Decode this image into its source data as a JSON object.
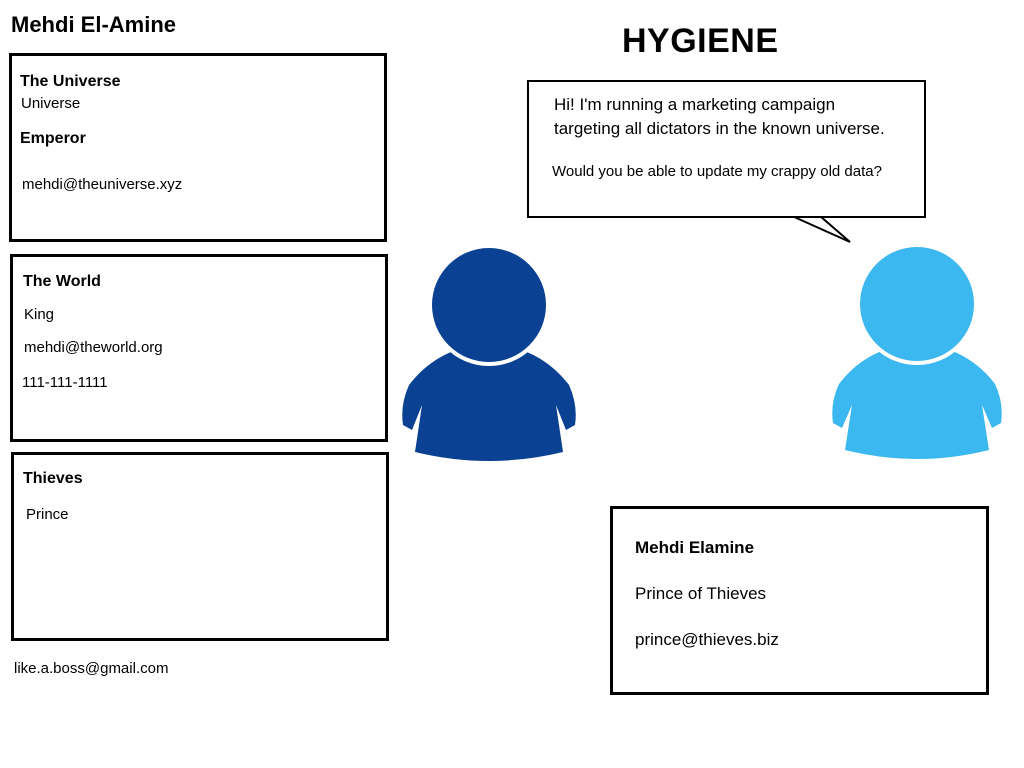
{
  "header": {
    "name": "Mehdi El-Amine",
    "title": "HYGIENE"
  },
  "records": [
    {
      "org": "The Universe",
      "line1": "Universe",
      "role": "Emperor",
      "email": "mehdi@theuniverse.xyz"
    },
    {
      "org": "The World",
      "role": "King",
      "email": "mehdi@theworld.org",
      "phone": "111-111-1111"
    },
    {
      "org": "Thieves",
      "role": "Prince"
    }
  ],
  "footer_email": "like.a.boss@gmail.com",
  "speech": {
    "line1": "Hi! I'm running a marketing campaign",
    "line2": "targeting all dictators in the known universe.",
    "line3": "Would you be able to update my crappy old data?"
  },
  "clean_record": {
    "name": "Mehdi Elamine",
    "title": "Prince of Thieves",
    "email": "prince@thieves.biz"
  },
  "colors": {
    "person_left": "#0a4192",
    "person_right": "#3bb8ef",
    "border": "#000000"
  },
  "icons": {
    "left_person": "user-icon",
    "right_person": "user-icon"
  }
}
